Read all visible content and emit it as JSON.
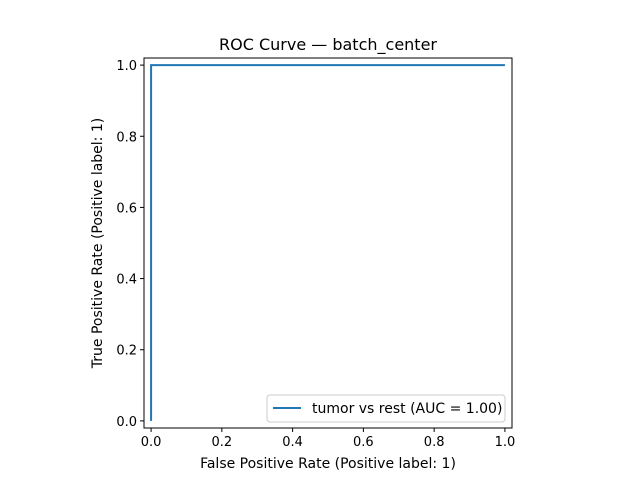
{
  "chart_data": {
    "type": "line",
    "title": "ROC Curve — batch_center",
    "xlabel": "False Positive Rate (Positive label: 1)",
    "ylabel": "True Positive Rate (Positive label: 1)",
    "xlim": [
      -0.02,
      1.02
    ],
    "ylim": [
      -0.02,
      1.02
    ],
    "xticks": [
      0.0,
      0.2,
      0.4,
      0.6,
      0.8,
      1.0
    ],
    "xtick_labels": [
      "0.0",
      "0.2",
      "0.4",
      "0.6",
      "0.8",
      "1.0"
    ],
    "yticks": [
      0.0,
      0.2,
      0.4,
      0.6,
      0.8,
      1.0
    ],
    "ytick_labels": [
      "0.0",
      "0.2",
      "0.4",
      "0.6",
      "0.8",
      "1.0"
    ],
    "grid": false,
    "legend_position": "lower-right",
    "series": [
      {
        "name": "tumor vs rest (AUC = 1.00)",
        "color": "#1f77b4",
        "x": [
          0.0,
          0.0,
          0.0,
          1.0
        ],
        "y": [
          0.0,
          0.0,
          1.0,
          1.0
        ]
      }
    ]
  }
}
